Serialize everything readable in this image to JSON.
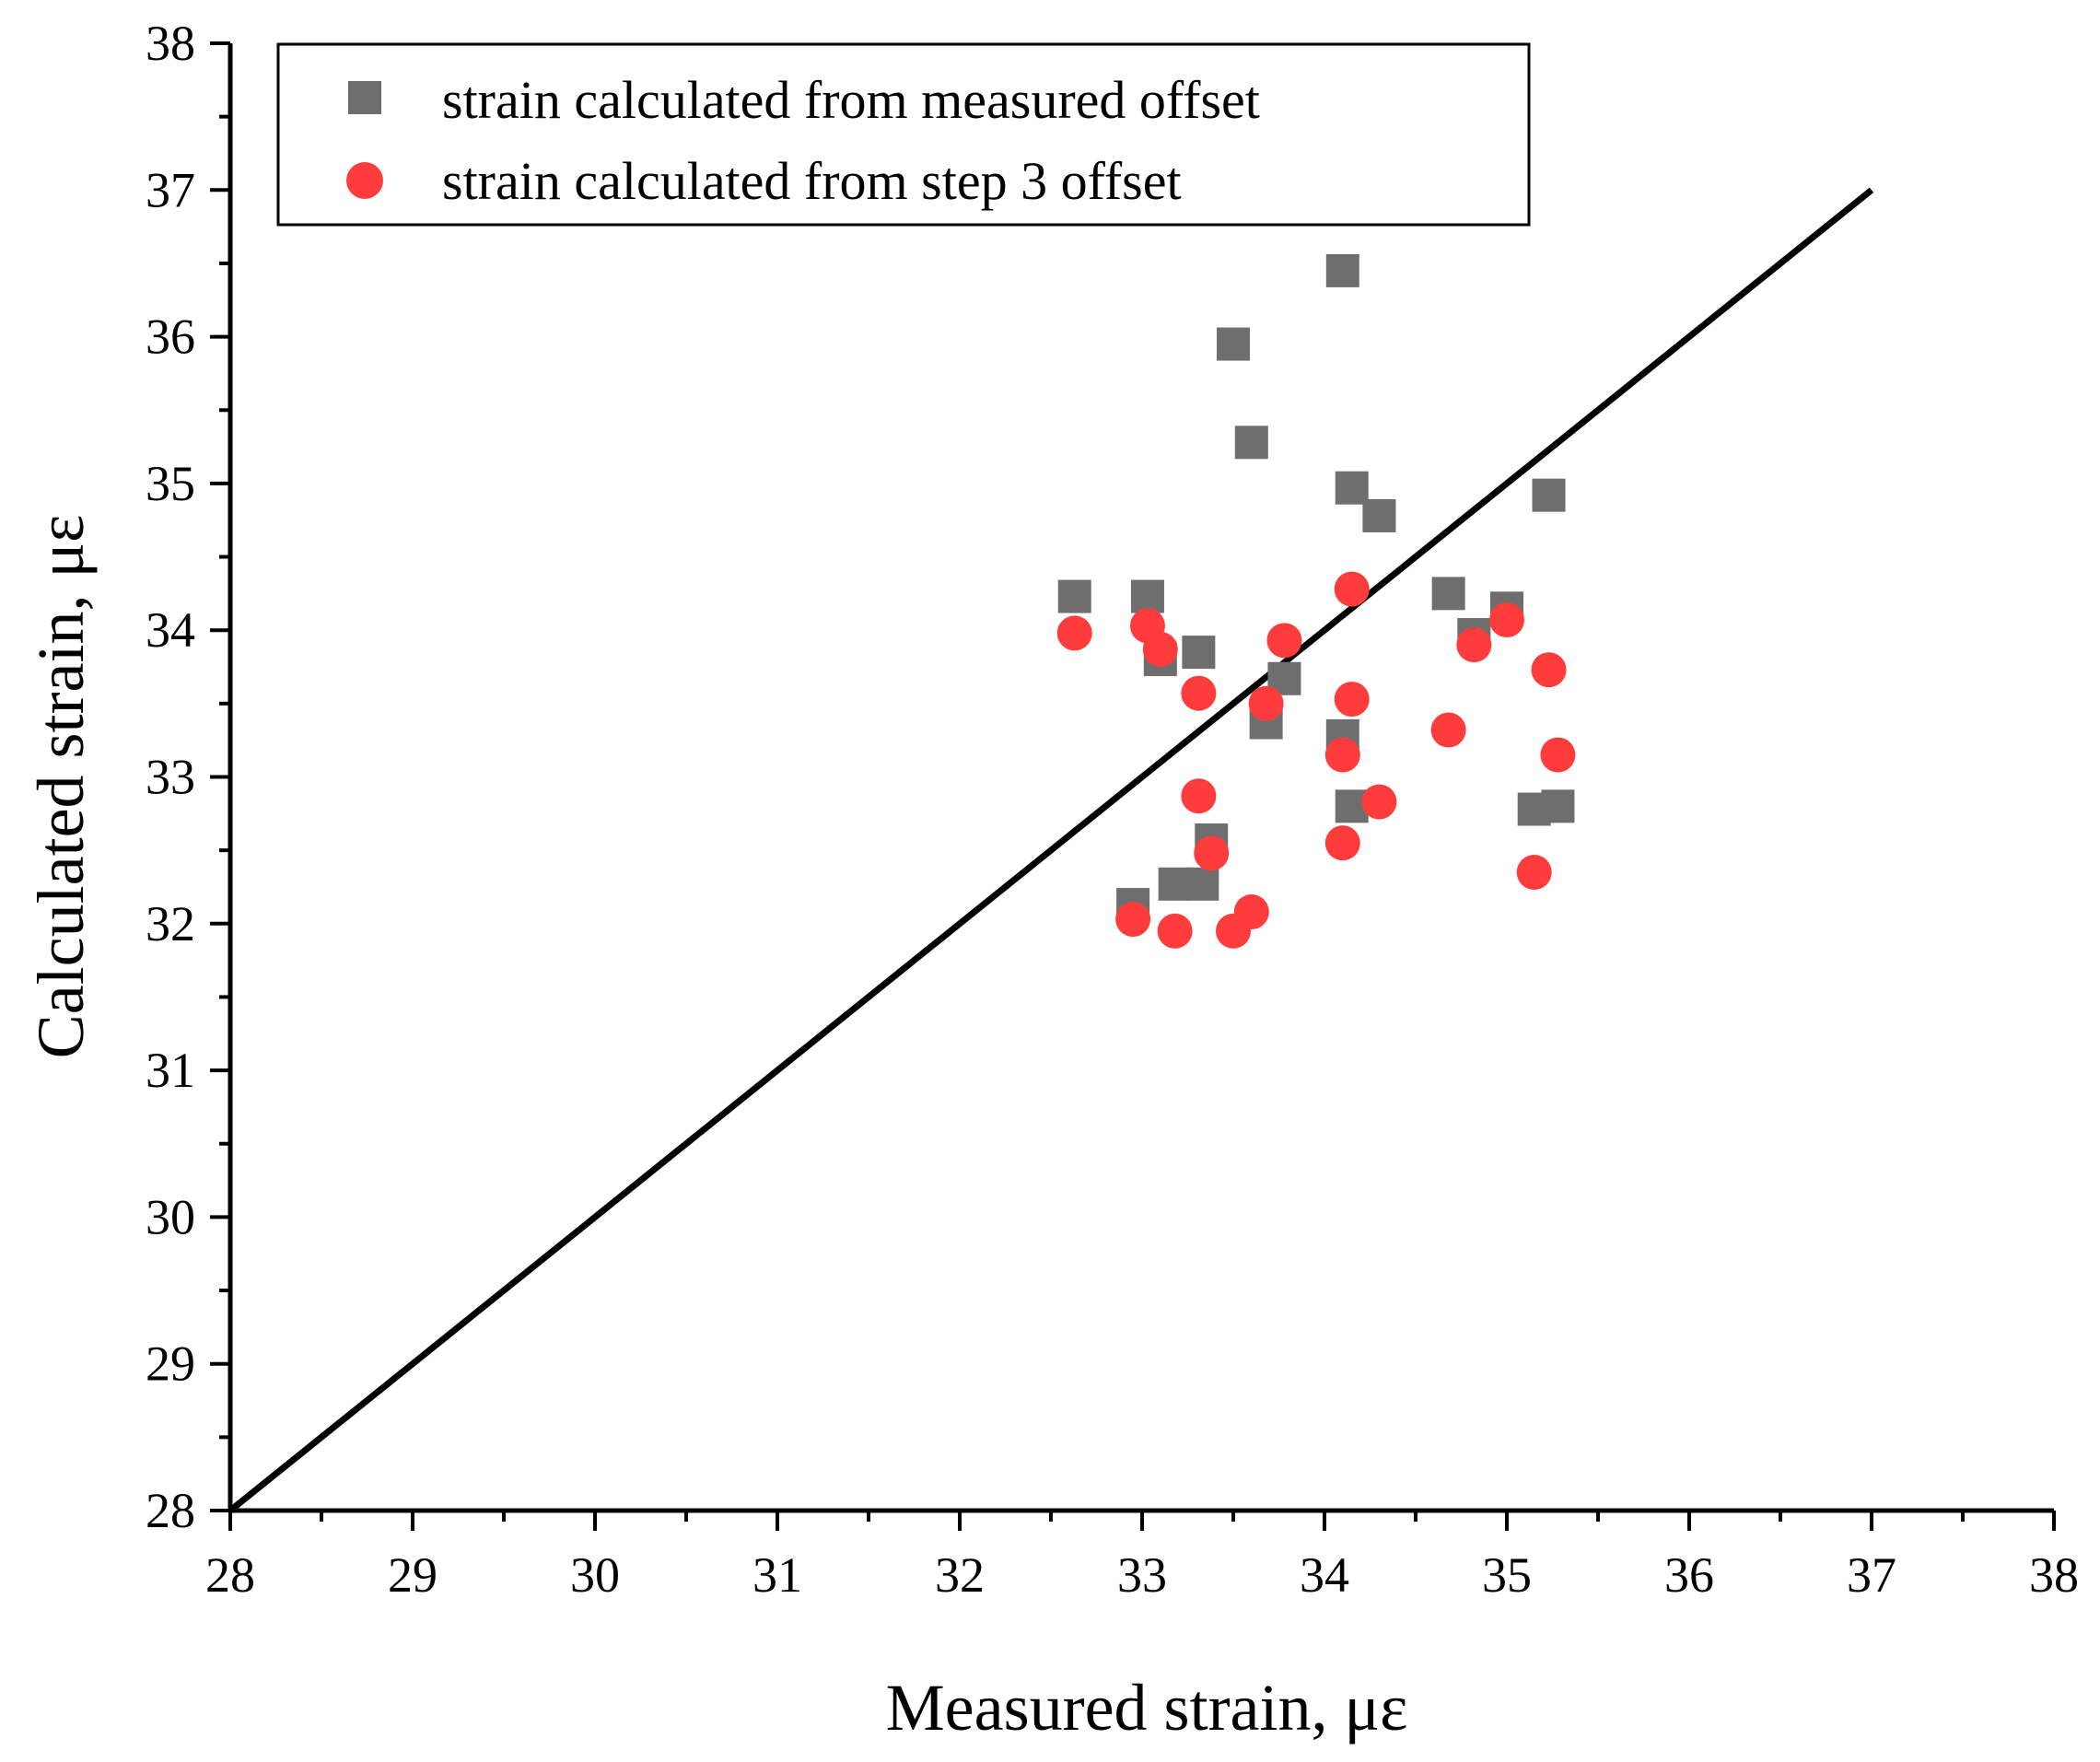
{
  "chart_data": {
    "type": "scatter",
    "xlabel": "Measured strain, με",
    "ylabel": "Calculated strain, με",
    "xlim": [
      28,
      38
    ],
    "ylim": [
      28,
      38
    ],
    "xticks": [
      "28",
      "29",
      "30",
      "31",
      "32",
      "33",
      "34",
      "35",
      "36",
      "37",
      "38"
    ],
    "yticks": [
      "28",
      "29",
      "30",
      "31",
      "32",
      "33",
      "34",
      "35",
      "36",
      "37",
      "38"
    ],
    "legend_position": "top-left",
    "reference_line": {
      "x": [
        28,
        37
      ],
      "y": [
        28,
        37
      ],
      "color": "#000000"
    },
    "series": [
      {
        "name": "strain calculated from measured offset",
        "marker": "square",
        "color": "#6e6e6e",
        "x": [
          32.63,
          33.03,
          33.1,
          33.31,
          33.18,
          33.33,
          32.95,
          33.38,
          33.5,
          33.6,
          33.68,
          33.78,
          34.1,
          34.1,
          34.15,
          34.15,
          34.3,
          34.68,
          34.82,
          35.0,
          35.15,
          35.23,
          35.28
        ],
        "y": [
          34.23,
          34.23,
          33.8,
          33.85,
          32.27,
          32.27,
          32.13,
          32.57,
          35.95,
          35.28,
          33.37,
          33.67,
          36.45,
          33.28,
          34.97,
          32.8,
          34.78,
          34.25,
          33.97,
          34.15,
          32.78,
          34.92,
          32.8
        ]
      },
      {
        "name": "strain calculated from step 3 offset",
        "marker": "circle",
        "color": "#ff3c3c",
        "x": [
          32.63,
          33.03,
          33.1,
          33.31,
          33.31,
          33.38,
          32.95,
          33.18,
          33.5,
          33.6,
          33.68,
          33.78,
          34.1,
          34.1,
          34.15,
          34.15,
          34.3,
          34.68,
          34.82,
          35.0,
          35.15,
          35.23,
          35.28
        ],
        "y": [
          33.98,
          34.03,
          33.87,
          33.57,
          32.87,
          32.48,
          32.03,
          31.95,
          31.95,
          32.08,
          33.5,
          33.93,
          33.15,
          32.55,
          34.28,
          33.53,
          32.83,
          33.32,
          33.9,
          34.07,
          32.35,
          33.73,
          33.15
        ]
      }
    ]
  }
}
